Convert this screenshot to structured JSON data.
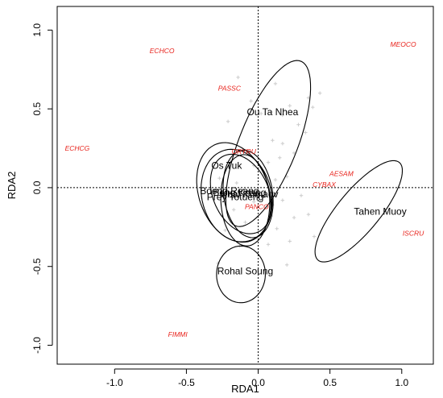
{
  "chart_data": {
    "type": "scatter",
    "title": "",
    "xlabel": "RDA1",
    "ylabel": "RDA2",
    "xlim": [
      -1.4,
      1.22
    ],
    "ylim": [
      -1.12,
      1.15
    ],
    "xticks": [
      -1.0,
      -0.5,
      0.0,
      0.5,
      1.0
    ],
    "xtick_labels": [
      "-1.0",
      "-0.5",
      "0.0",
      "0.5",
      "1.0"
    ],
    "yticks": [
      -1.0,
      -0.5,
      0.0,
      0.5,
      1.0
    ],
    "ytick_labels": [
      "-1.0",
      "-0.5",
      "0.0",
      "0.5",
      "1.0"
    ],
    "grid": false,
    "reference_lines": {
      "x": 0,
      "y": 0
    },
    "colors": {
      "species": "#e8221b",
      "sites": "#cccccc",
      "ellipses": "#000000",
      "axes": "#000000"
    },
    "species": [
      {
        "label": "ECHCO",
        "x": -0.67,
        "y": 0.87
      },
      {
        "label": "MEOCO",
        "x": 1.01,
        "y": 0.91
      },
      {
        "label": "PASSC",
        "x": -0.2,
        "y": 0.63
      },
      {
        "label": "ECHCG",
        "x": -1.26,
        "y": 0.25
      },
      {
        "label": "ORYRU",
        "x": -0.1,
        "y": 0.23
      },
      {
        "label": "AESAM",
        "x": 0.58,
        "y": 0.09
      },
      {
        "label": "CYBAX",
        "x": 0.46,
        "y": 0.02
      },
      {
        "label": "PANCO",
        "x": -0.01,
        "y": -0.12
      },
      {
        "label": "ISCRU",
        "x": 1.08,
        "y": -0.29
      },
      {
        "label": "FIMMI",
        "x": -0.56,
        "y": -0.93
      }
    ],
    "sites": [
      [
        0.12,
        0.66
      ],
      [
        0.35,
        0.57
      ],
      [
        0.43,
        0.6
      ],
      [
        0.22,
        0.52
      ],
      [
        0.38,
        0.51
      ],
      [
        0.09,
        0.48
      ],
      [
        0.17,
        0.46
      ],
      [
        -0.14,
        0.7
      ],
      [
        0.02,
        0.47
      ],
      [
        -0.05,
        0.55
      ],
      [
        0.28,
        0.4
      ],
      [
        0.33,
        0.35
      ],
      [
        0.1,
        0.3
      ],
      [
        0.17,
        0.28
      ],
      [
        -0.21,
        0.42
      ],
      [
        0.25,
        0.22
      ],
      [
        0.15,
        0.19
      ],
      [
        0.07,
        0.16
      ],
      [
        -0.03,
        0.14
      ],
      [
        0.2,
        0.07
      ],
      [
        0.12,
        0.05
      ],
      [
        0.3,
        -0.05
      ],
      [
        -0.19,
        0.17
      ],
      [
        -0.27,
        0.06
      ],
      [
        -0.15,
        0.03
      ],
      [
        0.05,
        -0.03
      ],
      [
        0.17,
        -0.08
      ],
      [
        0.09,
        -0.18
      ],
      [
        -0.17,
        -0.14
      ],
      [
        -0.09,
        -0.22
      ],
      [
        0.13,
        -0.26
      ],
      [
        0.25,
        -0.19
      ],
      [
        0.35,
        -0.17
      ],
      [
        0.39,
        -0.31
      ],
      [
        -0.23,
        -0.27
      ],
      [
        -0.13,
        -0.37
      ],
      [
        0.07,
        -0.36
      ],
      [
        0.2,
        -0.49
      ],
      [
        -0.28,
        -0.48
      ],
      [
        -0.03,
        -0.09
      ],
      [
        0.1,
        -0.11
      ],
      [
        0.22,
        -0.34
      ]
    ],
    "groups": [
      {
        "label": "Ou Ta Nhea",
        "label_x": 0.1,
        "label_y": 0.48,
        "cx": 0.07,
        "cy": 0.28,
        "rx": 0.57,
        "ry": 0.2,
        "angle": 66
      },
      {
        "label": "Os Tuk",
        "label_x": -0.22,
        "label_y": 0.14,
        "cx": -0.17,
        "cy": -0.03,
        "rx": 0.33,
        "ry": 0.24,
        "angle": 115
      },
      {
        "label": "Boeng Reang",
        "label_x": -0.2,
        "label_y": -0.02,
        "cx": -0.15,
        "cy": -0.05,
        "rx": 0.3,
        "ry": 0.24,
        "angle": 110
      },
      {
        "label": "Beng Knang",
        "label_x": -0.13,
        "label_y": -0.03,
        "cx": -0.12,
        "cy": -0.04,
        "rx": 0.27,
        "ry": 0.19,
        "angle": 120
      },
      {
        "label": "Kbal Khmaov",
        "label_x": -0.06,
        "label_y": -0.04,
        "cx": -0.07,
        "cy": -0.04,
        "rx": 0.28,
        "ry": 0.17,
        "angle": 100
      },
      {
        "label": "Prey Totueng",
        "label_x": -0.16,
        "label_y": -0.06,
        "cx": -0.09,
        "cy": -0.08,
        "rx": 0.29,
        "ry": 0.17,
        "angle": 93
      },
      {
        "label": "Rohal Soung",
        "label_x": -0.09,
        "label_y": -0.53,
        "cx": -0.12,
        "cy": -0.55,
        "rx": 0.18,
        "ry": 0.17,
        "angle": 88
      },
      {
        "label": "Tahen Muoy",
        "label_x": 0.85,
        "label_y": -0.15,
        "cx": 0.7,
        "cy": -0.15,
        "rx": 0.42,
        "ry": 0.14,
        "angle": 47
      }
    ]
  }
}
